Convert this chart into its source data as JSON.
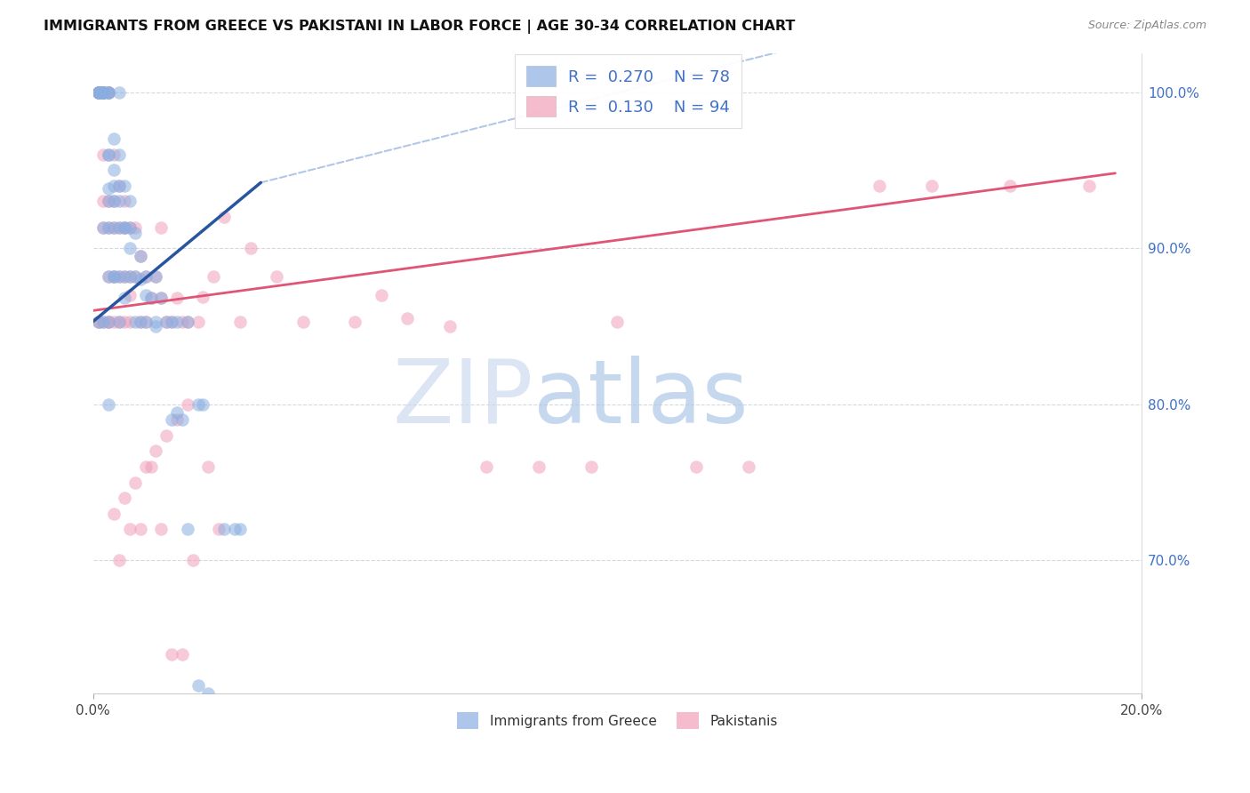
{
  "title": "IMMIGRANTS FROM GREECE VS PAKISTANI IN LABOR FORCE | AGE 30-34 CORRELATION CHART",
  "source": "Source: ZipAtlas.com",
  "ylabel": "In Labor Force | Age 30-34",
  "legend_blue_label": "Immigrants from Greece",
  "legend_pink_label": "Pakistanis",
  "blue_color": "#8AAEE0",
  "pink_color": "#F0A0B8",
  "blue_line_color": "#2855A0",
  "pink_line_color": "#E05575",
  "dashed_line_color": "#80A0D8",
  "background_color": "#FFFFFF",
  "grid_color": "#C8D0DC",
  "text_color_blue": "#4070C8",
  "text_color_dark": "#1A1A1A",
  "xlim": [
    0.0,
    0.2
  ],
  "ylim": [
    0.615,
    1.025
  ],
  "blue_line": [
    0.0,
    0.032,
    0.853,
    0.942
  ],
  "pink_line": [
    0.0,
    0.195,
    0.86,
    0.948
  ],
  "dashed_line": [
    0.032,
    0.195,
    0.942,
    1.08
  ],
  "marker_size": 110,
  "title_fontsize": 11.5,
  "source_fontsize": 9,
  "axis_fontsize": 11,
  "legend_fontsize": 13,
  "watermark_zip_color": "#C5D8EE",
  "watermark_atlas_color": "#A8C4E4",
  "blue_x": [
    0.001,
    0.001,
    0.001,
    0.001,
    0.001,
    0.001,
    0.001,
    0.002,
    0.002,
    0.002,
    0.002,
    0.002,
    0.002,
    0.002,
    0.002,
    0.003,
    0.003,
    0.003,
    0.003,
    0.003,
    0.003,
    0.003,
    0.003,
    0.003,
    0.004,
    0.004,
    0.004,
    0.004,
    0.004,
    0.005,
    0.005,
    0.005,
    0.005,
    0.005,
    0.005,
    0.006,
    0.006,
    0.006,
    0.007,
    0.007,
    0.007,
    0.008,
    0.008,
    0.008,
    0.009,
    0.009,
    0.01,
    0.01,
    0.011,
    0.012,
    0.012,
    0.013,
    0.014,
    0.015,
    0.016,
    0.018,
    0.02,
    0.021,
    0.003,
    0.004,
    0.004,
    0.005,
    0.006,
    0.007,
    0.009,
    0.01,
    0.012,
    0.015,
    0.016,
    0.017,
    0.018,
    0.025,
    0.027,
    0.028,
    0.02,
    0.022,
    0.003,
    0.006
  ],
  "blue_y": [
    1.0,
    1.0,
    1.0,
    1.0,
    1.0,
    1.0,
    0.853,
    1.0,
    1.0,
    1.0,
    1.0,
    1.0,
    1.0,
    0.913,
    0.853,
    1.0,
    1.0,
    1.0,
    0.96,
    0.938,
    0.93,
    0.913,
    0.882,
    0.853,
    0.97,
    0.94,
    0.93,
    0.913,
    0.882,
    1.0,
    0.96,
    0.93,
    0.913,
    0.882,
    0.853,
    0.94,
    0.913,
    0.882,
    0.93,
    0.913,
    0.882,
    0.91,
    0.882,
    0.853,
    0.895,
    0.853,
    0.882,
    0.853,
    0.868,
    0.882,
    0.853,
    0.868,
    0.853,
    0.853,
    0.853,
    0.853,
    0.8,
    0.8,
    0.96,
    0.95,
    0.882,
    0.94,
    0.913,
    0.9,
    0.88,
    0.87,
    0.85,
    0.79,
    0.795,
    0.79,
    0.72,
    0.72,
    0.72,
    0.72,
    0.62,
    0.615,
    0.8,
    0.868
  ],
  "pink_x": [
    0.001,
    0.001,
    0.001,
    0.001,
    0.001,
    0.001,
    0.001,
    0.001,
    0.002,
    0.002,
    0.002,
    0.002,
    0.002,
    0.002,
    0.002,
    0.003,
    0.003,
    0.003,
    0.003,
    0.003,
    0.003,
    0.003,
    0.004,
    0.004,
    0.004,
    0.004,
    0.004,
    0.005,
    0.005,
    0.005,
    0.005,
    0.006,
    0.006,
    0.006,
    0.006,
    0.007,
    0.007,
    0.007,
    0.007,
    0.008,
    0.008,
    0.009,
    0.009,
    0.01,
    0.01,
    0.011,
    0.012,
    0.013,
    0.013,
    0.014,
    0.015,
    0.016,
    0.017,
    0.018,
    0.02,
    0.021,
    0.023,
    0.025,
    0.028,
    0.03,
    0.035,
    0.04,
    0.05,
    0.055,
    0.06,
    0.068,
    0.075,
    0.085,
    0.095,
    0.1,
    0.115,
    0.125,
    0.15,
    0.16,
    0.175,
    0.19,
    0.005,
    0.007,
    0.009,
    0.011,
    0.013,
    0.015,
    0.017,
    0.019,
    0.022,
    0.024,
    0.004,
    0.006,
    0.008,
    0.01,
    0.012,
    0.014,
    0.016,
    0.018
  ],
  "pink_y": [
    1.0,
    1.0,
    1.0,
    1.0,
    1.0,
    1.0,
    0.853,
    0.853,
    1.0,
    1.0,
    1.0,
    0.96,
    0.93,
    0.913,
    0.853,
    1.0,
    1.0,
    0.93,
    0.913,
    0.882,
    0.853,
    0.853,
    0.96,
    0.93,
    0.913,
    0.882,
    0.853,
    0.94,
    0.913,
    0.882,
    0.853,
    0.93,
    0.913,
    0.882,
    0.853,
    0.913,
    0.882,
    0.87,
    0.853,
    0.913,
    0.882,
    0.895,
    0.853,
    0.882,
    0.853,
    0.868,
    0.882,
    0.913,
    0.868,
    0.853,
    0.853,
    0.868,
    0.853,
    0.853,
    0.853,
    0.869,
    0.882,
    0.92,
    0.853,
    0.9,
    0.882,
    0.853,
    0.853,
    0.87,
    0.855,
    0.85,
    0.76,
    0.76,
    0.76,
    0.853,
    0.76,
    0.76,
    0.94,
    0.94,
    0.94,
    0.94,
    0.7,
    0.72,
    0.72,
    0.76,
    0.72,
    0.64,
    0.64,
    0.7,
    0.76,
    0.72,
    0.73,
    0.74,
    0.75,
    0.76,
    0.77,
    0.78,
    0.79,
    0.8
  ]
}
